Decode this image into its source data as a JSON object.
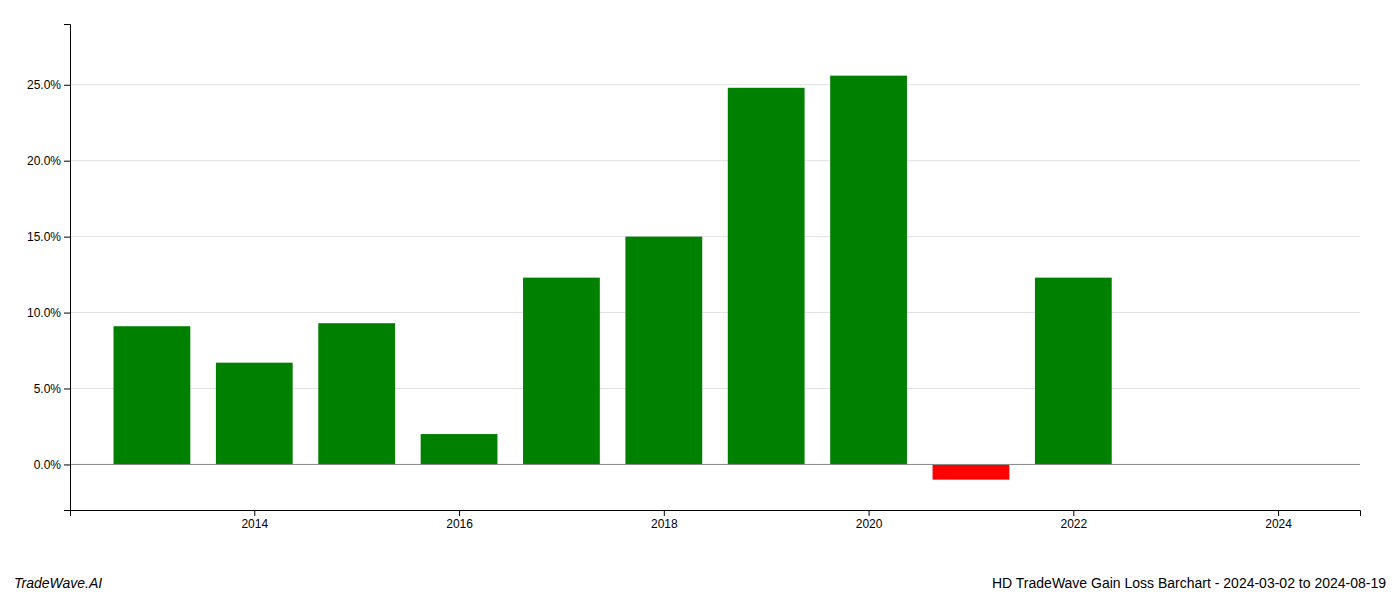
{
  "chart_data": {
    "type": "bar",
    "title": "HD TradeWave Gain Loss Barchart - 2024-03-02 to 2024-08-19",
    "annotations": [
      "TradeWave.AI"
    ],
    "x": [
      2013,
      2014,
      2015,
      2016,
      2017,
      2018,
      2019,
      2020,
      2021,
      2022,
      2023
    ],
    "values": [
      0.091,
      0.067,
      0.093,
      0.02,
      0.123,
      0.15,
      0.248,
      0.256,
      -0.01,
      0.123,
      0.0
    ],
    "colors": [
      "#008000",
      "#008000",
      "#008000",
      "#008000",
      "#008000",
      "#008000",
      "#008000",
      "#008000",
      "#ff0000",
      "#008000",
      "#008000"
    ],
    "xlim": [
      2012.2,
      2024.8
    ],
    "xticks": [
      2014,
      2016,
      2018,
      2020,
      2022,
      2024
    ],
    "ylim": [
      -0.03,
      0.29
    ],
    "yticks": [
      {
        "value": 0.0,
        "label": "0.0%"
      },
      {
        "value": 0.05,
        "label": "5.0%"
      },
      {
        "value": 0.1,
        "label": "10.0%"
      },
      {
        "value": 0.15,
        "label": "15.0%"
      },
      {
        "value": 0.2,
        "label": "20.0%"
      },
      {
        "value": 0.25,
        "label": "25.0%"
      }
    ],
    "grid": true
  }
}
